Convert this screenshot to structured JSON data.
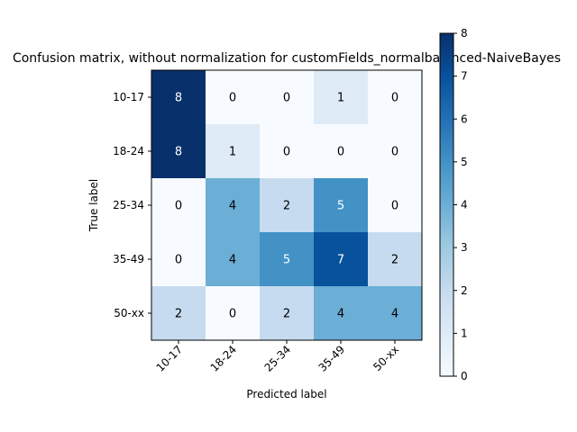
{
  "chart_data": {
    "type": "heatmap",
    "title": "Confusion matrix, without normalization for customFields_normalbalanced-NaiveBayes",
    "xlabel": "Predicted label",
    "ylabel": "True label",
    "x_categories": [
      "10-17",
      "18-24",
      "25-34",
      "35-49",
      "50-xx"
    ],
    "y_categories": [
      "10-17",
      "18-24",
      "25-34",
      "35-49",
      "50-xx"
    ],
    "matrix": [
      [
        8,
        0,
        0,
        1,
        0
      ],
      [
        8,
        1,
        0,
        0,
        0
      ],
      [
        0,
        4,
        2,
        5,
        0
      ],
      [
        0,
        4,
        5,
        7,
        2
      ],
      [
        2,
        0,
        2,
        4,
        4
      ]
    ],
    "colormap": "Blues",
    "vmin": 0,
    "vmax": 8,
    "colorbar_ticks": [
      "0",
      "1",
      "2",
      "3",
      "4",
      "5",
      "6",
      "7",
      "8"
    ],
    "text_color_dark": "#000000",
    "text_color_light": "#ffffff"
  }
}
